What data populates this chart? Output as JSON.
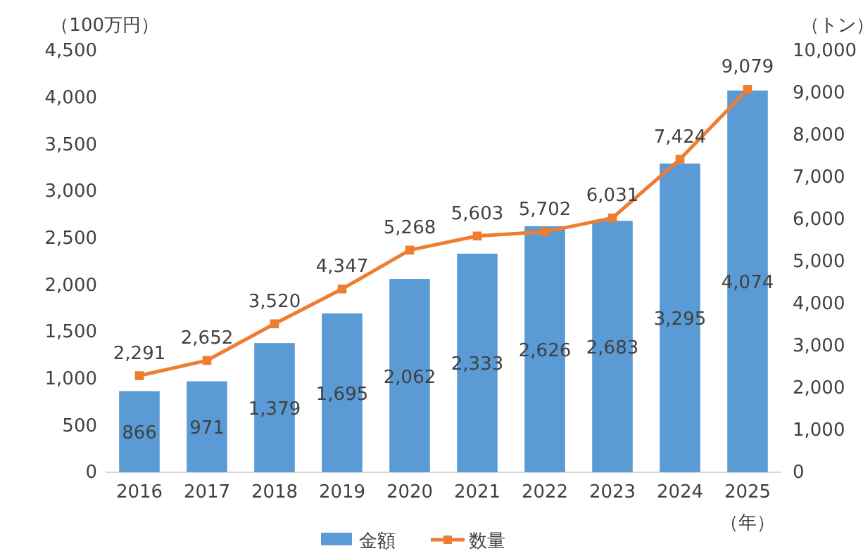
{
  "chart_data": {
    "type": "bar",
    "categories": [
      "2016",
      "2017",
      "2018",
      "2019",
      "2020",
      "2021",
      "2022",
      "2023",
      "2024",
      "2025"
    ],
    "series": [
      {
        "name": "金額",
        "color": "#5b9bd5",
        "values": [
          866,
          971,
          1379,
          1695,
          2062,
          2333,
          2626,
          2683,
          3295,
          4074
        ],
        "value_labels": [
          "866",
          "971",
          "1,379",
          "1,695",
          "2,062",
          "2,333",
          "2,626",
          "2,683",
          "3,295",
          "4,074"
        ]
      },
      {
        "name": "数量",
        "type": "line",
        "axis": "y2",
        "color": "#ed7d31",
        "marker": "square",
        "values": [
          2291,
          2652,
          3520,
          4347,
          5268,
          5603,
          5702,
          6031,
          7424,
          9079
        ],
        "value_labels": [
          "2,291",
          "2,652",
          "3,520",
          "4,347",
          "5,268",
          "5,603",
          "5,702",
          "6,031",
          "7,424",
          "9,079"
        ]
      }
    ],
    "ylabel": "（100万円）",
    "y2label": "（トン）",
    "xlabel": "（年）",
    "ylim": [
      0,
      4500
    ],
    "yticks": [
      0,
      500,
      {
        "value": 1000,
        "label": "1,000"
      },
      {
        "value": 1500,
        "label": "1,500"
      },
      {
        "value": 2000,
        "label": "2,000"
      },
      {
        "value": 2500,
        "label": "2,500"
      },
      {
        "value": 3000,
        "label": "3,000"
      },
      {
        "value": 3500,
        "label": "3,500"
      },
      {
        "value": 4000,
        "label": "4,000"
      },
      {
        "value": 4500,
        "label": "4,500"
      }
    ],
    "y2lim": [
      0,
      10000
    ],
    "y2ticks": [
      0,
      {
        "value": 1000,
        "label": "1,000"
      },
      {
        "value": 2000,
        "label": "2,000"
      },
      {
        "value": 3000,
        "label": "3,000"
      },
      {
        "value": 4000,
        "label": "4,000"
      },
      {
        "value": 5000,
        "label": "5,000"
      },
      {
        "value": 6000,
        "label": "6,000"
      },
      {
        "value": 7000,
        "label": "7,000"
      },
      {
        "value": 8000,
        "label": "8,000"
      },
      {
        "value": 9000,
        "label": "9,000"
      },
      {
        "value": 10000,
        "label": "10,000"
      }
    ],
    "grid": false,
    "legend": "bottom"
  }
}
